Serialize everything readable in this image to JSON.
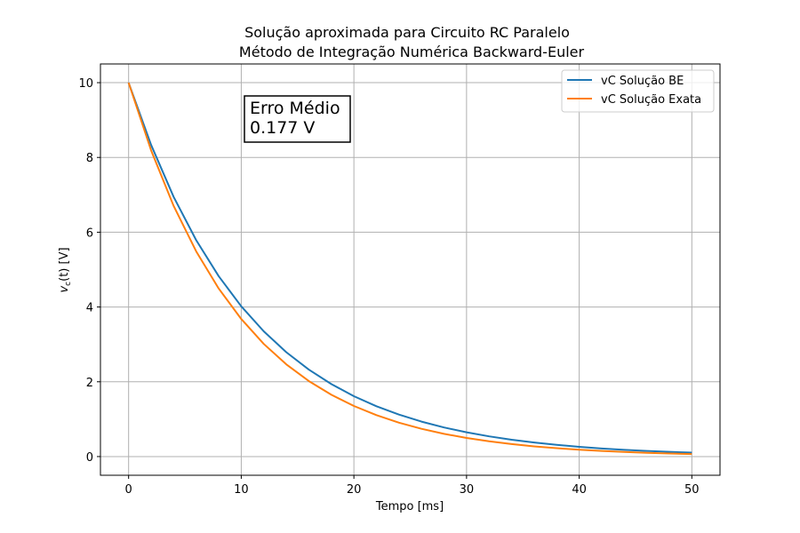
{
  "chart_data": {
    "type": "line",
    "title_line1": "Solução aproximada para Circuito RC Paralelo",
    "title_line2": "Método de Integração Numérica Backward-Euler",
    "xlabel": "Tempo [ms]",
    "ylabel_main": "v",
    "ylabel_sub": "c",
    "ylabel_rest": "(t) [V]",
    "xlim": [
      -2.5,
      52.5
    ],
    "ylim": [
      -0.5,
      10.5
    ],
    "xticks": [
      0,
      10,
      20,
      30,
      40,
      50
    ],
    "yticks": [
      0,
      2,
      4,
      6,
      8,
      10
    ],
    "grid": true,
    "legend_position": "top-right",
    "x": [
      0,
      2,
      4,
      6,
      8,
      10,
      12,
      14,
      16,
      18,
      20,
      22,
      24,
      26,
      28,
      30,
      32,
      34,
      36,
      38,
      40,
      42,
      44,
      46,
      48,
      50
    ],
    "series": [
      {
        "name": "vC Solução BE",
        "color": "#1f77b4",
        "values": [
          10,
          8.333,
          6.944,
          5.787,
          4.823,
          4.019,
          3.349,
          2.791,
          2.326,
          1.938,
          1.615,
          1.346,
          1.122,
          0.935,
          0.779,
          0.649,
          0.541,
          0.451,
          0.376,
          0.313,
          0.261,
          0.217,
          0.181,
          0.151,
          0.126,
          0.105
        ]
      },
      {
        "name": "vC Solução Exata",
        "color": "#ff7f0e",
        "values": [
          10,
          8.187,
          6.703,
          5.488,
          4.493,
          3.679,
          3.012,
          2.466,
          2.019,
          1.653,
          1.353,
          1.108,
          0.907,
          0.743,
          0.608,
          0.498,
          0.408,
          0.334,
          0.273,
          0.224,
          0.183,
          0.15,
          0.123,
          0.1,
          0.082,
          0.067
        ]
      }
    ],
    "annotation": {
      "line1": "Erro Médio",
      "line2": "0.177 V"
    }
  }
}
